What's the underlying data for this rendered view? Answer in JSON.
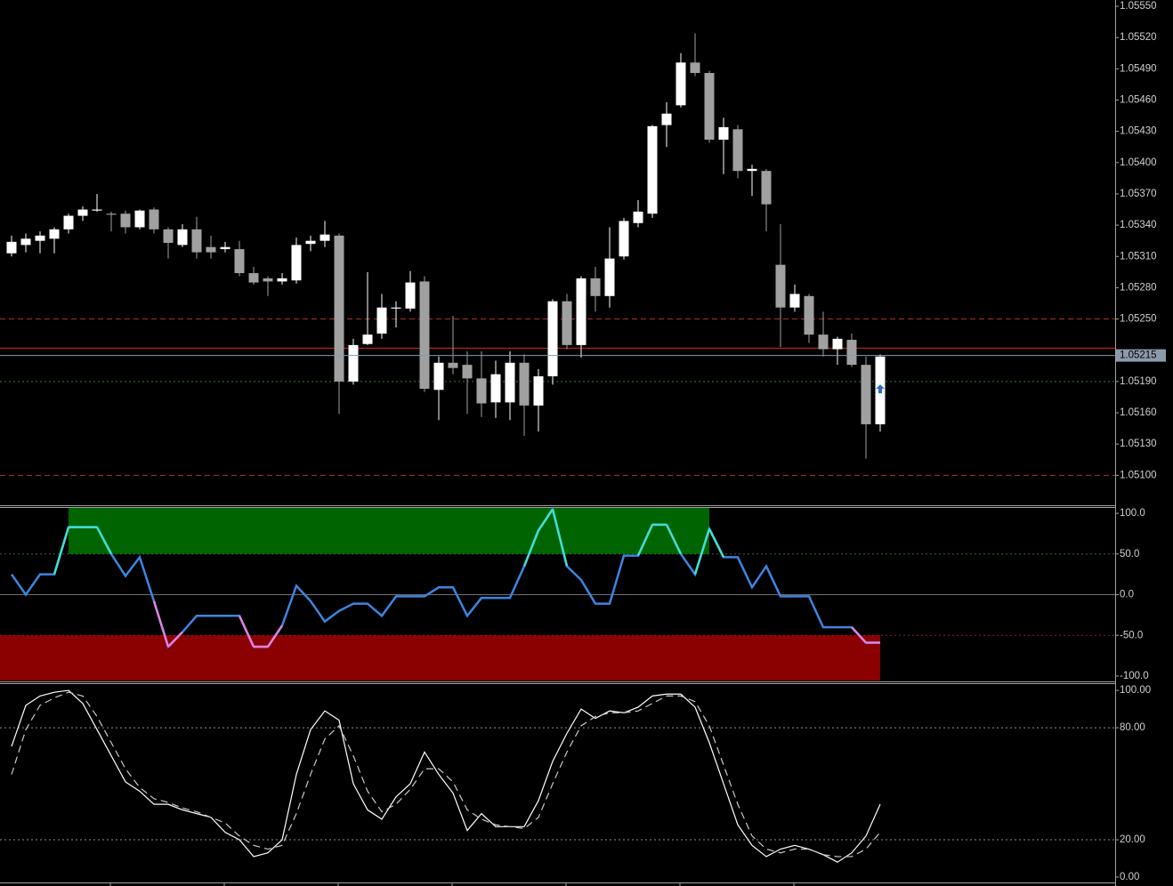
{
  "chart_data": [
    {
      "type": "candlestick",
      "open": [
        1.05313,
        1.05321,
        1.05325,
        1.05327,
        1.05336,
        1.05349,
        1.05354,
        1.05351,
        1.05351,
        1.05338,
        1.05355,
        1.05336,
        1.05321,
        1.05336,
        1.05319,
        1.05317,
        1.05317,
        1.05294,
        1.05289,
        1.05286,
        1.05287,
        1.05322,
        1.05325,
        1.0533,
        1.0519,
        1.05226,
        1.05236,
        1.0526,
        1.0526,
        1.05286,
        1.05182,
        1.05208,
        1.05206,
        1.05193,
        1.0517,
        1.0517,
        1.05208,
        1.05167,
        1.05195,
        1.05267,
        1.05225,
        1.05289,
        1.05272,
        1.0531,
        1.05342,
        1.05351,
        1.05436,
        1.05455,
        1.05496,
        1.05486,
        1.05422,
        1.05432,
        1.05392,
        1.05392,
        1.05302,
        1.05261,
        1.05272,
        1.05235,
        1.05221,
        1.0523,
        1.05206,
        1.05149
      ],
      "high": [
        1.0533,
        1.05332,
        1.05334,
        1.05338,
        1.05351,
        1.05358,
        1.0537,
        1.05353,
        1.05354,
        1.05355,
        1.05357,
        1.05338,
        1.05341,
        1.05348,
        1.0533,
        1.05324,
        1.05325,
        1.053,
        1.05291,
        1.05294,
        1.05328,
        1.0533,
        1.05344,
        1.05332,
        1.05231,
        1.05295,
        1.05274,
        1.05267,
        1.05296,
        1.05291,
        1.05214,
        1.05253,
        1.05219,
        1.05219,
        1.0521,
        1.05219,
        1.05216,
        1.05202,
        1.05269,
        1.05274,
        1.05291,
        1.053,
        1.05338,
        1.05347,
        1.05364,
        1.05436,
        1.05458,
        1.05505,
        1.05524,
        1.05488,
        1.05443,
        1.05436,
        1.05398,
        1.05394,
        1.05341,
        1.05283,
        1.05274,
        1.05257,
        1.05233,
        1.05236,
        1.05214,
        1.05216
      ],
      "low": [
        1.0531,
        1.05314,
        1.05313,
        1.05313,
        1.05332,
        1.05344,
        1.05353,
        1.05334,
        1.05332,
        1.05336,
        1.05332,
        1.05308,
        1.05319,
        1.05308,
        1.05308,
        1.05314,
        1.05291,
        1.05283,
        1.05272,
        1.05283,
        1.05284,
        1.05315,
        1.05319,
        1.05159,
        1.05187,
        1.05225,
        1.05231,
        1.05242,
        1.05257,
        1.0518,
        1.05153,
        1.05197,
        1.05159,
        1.05156,
        1.05155,
        1.05153,
        1.05138,
        1.05142,
        1.05187,
        1.05221,
        1.05213,
        1.05257,
        1.05261,
        1.05307,
        1.05338,
        1.05347,
        1.05415,
        1.05453,
        1.05483,
        1.05419,
        1.05389,
        1.05385,
        1.05368,
        1.05334,
        1.05223,
        1.05257,
        1.05227,
        1.05214,
        1.05206,
        1.05204,
        1.05116,
        1.05142
      ],
      "close": [
        1.05324,
        1.05327,
        1.0533,
        1.05336,
        1.05349,
        1.05355,
        1.05355,
        1.0535,
        1.05338,
        1.05354,
        1.05336,
        1.05323,
        1.05336,
        1.05314,
        1.05314,
        1.05319,
        1.05294,
        1.05285,
        1.05286,
        1.05289,
        1.05321,
        1.05325,
        1.05331,
        1.0519,
        1.05225,
        1.05235,
        1.05261,
        1.05261,
        1.05285,
        1.05183,
        1.05208,
        1.05203,
        1.05193,
        1.05169,
        1.05197,
        1.05208,
        1.05167,
        1.05195,
        1.05267,
        1.05225,
        1.05289,
        1.05272,
        1.05308,
        1.05344,
        1.05353,
        1.05435,
        1.05447,
        1.05496,
        1.05486,
        1.05422,
        1.05434,
        1.05392,
        1.05394,
        1.0536,
        1.05261,
        1.05274,
        1.05235,
        1.05221,
        1.05231,
        1.05206,
        1.05149,
        1.05214
      ],
      "up_color": "#ffffff",
      "down_color": "#a0a0a0",
      "ylim": [
        1.05073,
        1.05556
      ],
      "yticks": [
        {
          "value": 1.0555,
          "label": "1.05550"
        },
        {
          "value": 1.0552,
          "label": "1.05520"
        },
        {
          "value": 1.0549,
          "label": "1.05490"
        },
        {
          "value": 1.0546,
          "label": "1.05460"
        },
        {
          "value": 1.0543,
          "label": "1.05430"
        },
        {
          "value": 1.054,
          "label": "1.05400"
        },
        {
          "value": 1.0537,
          "label": "1.05370"
        },
        {
          "value": 1.0534,
          "label": "1.05340"
        },
        {
          "value": 1.0531,
          "label": "1.05310"
        },
        {
          "value": 1.0528,
          "label": "1.05280"
        },
        {
          "value": 1.0525,
          "label": "1.05250"
        },
        {
          "value": 1.0519,
          "label": "1.05190"
        },
        {
          "value": 1.0516,
          "label": "1.05160"
        },
        {
          "value": 1.0513,
          "label": "1.05130"
        },
        {
          "value": 1.051,
          "label": "1.05100"
        }
      ],
      "levels": [
        {
          "value": 1.0525,
          "color": "#b03030",
          "style": "dashed"
        },
        {
          "value": 1.0519,
          "color": "#3a7a3a",
          "style": "dotted"
        },
        {
          "value": 1.051,
          "color": "#b03030",
          "style": "dashed"
        },
        {
          "value": 1.05222,
          "color": "#e02020",
          "style": "solid"
        }
      ],
      "last_price": 1.05215,
      "last_price_color": "#8c9aac",
      "signal_arrow": {
        "index": 61,
        "value": 1.05183,
        "color": "#2a6fc0"
      }
    },
    {
      "type": "line",
      "series": [
        {
          "color": "#3d85e0",
          "values": [
            25,
            0,
            25,
            25,
            83,
            83,
            83,
            50,
            23,
            46,
            -8,
            -64,
            -46,
            -26,
            -26,
            -26,
            -26,
            -64,
            -64,
            -38,
            11,
            -8,
            -33,
            -20,
            -11,
            -11,
            -26,
            -2,
            -2,
            -2,
            9,
            9,
            -26,
            -4,
            -4,
            -4,
            35,
            79,
            105,
            35,
            18,
            -11,
            -11,
            48,
            48,
            86,
            86,
            50,
            25,
            81,
            46,
            46,
            9,
            35,
            -2,
            -2,
            -2,
            -40,
            -40,
            -40,
            -59,
            -59
          ]
        }
      ],
      "high_color": "#40e0d0",
      "low_color": "#e080e0",
      "zones": [
        {
          "start": 4,
          "end": 49,
          "above": 50,
          "color": "#006400"
        },
        {
          "start": 0,
          "end": 61,
          "below": -50,
          "color": "#8b0000"
        }
      ],
      "ylim": [
        -105.5,
        106.6
      ],
      "yticks": [
        {
          "value": 100,
          "label": "100.0"
        },
        {
          "value": 50,
          "label": "50.0"
        },
        {
          "value": 0,
          "label": "0.0"
        },
        {
          "value": -50,
          "label": "-50.0"
        },
        {
          "value": -100,
          "label": "-100.0"
        }
      ],
      "levels": [
        {
          "value": 50,
          "color": "#2e6b2e",
          "style": "dotted"
        },
        {
          "value": 0,
          "color": "#707070",
          "style": "solid"
        },
        {
          "value": -50,
          "color": "#8b2020",
          "style": "dotted"
        }
      ]
    },
    {
      "type": "line",
      "series": [
        {
          "color": "#ffffff",
          "dash": false,
          "values": [
            70,
            92,
            97,
            99,
            100,
            93,
            79,
            65,
            51,
            46,
            39,
            39,
            36,
            34,
            32,
            24,
            20,
            11,
            13,
            20,
            55,
            79,
            89,
            84,
            50,
            36,
            31,
            43,
            50,
            67,
            55,
            45,
            25,
            34,
            27,
            27,
            27,
            41,
            62,
            77,
            90,
            85,
            89,
            88,
            91,
            97,
            98,
            98,
            91,
            72,
            50,
            28,
            17,
            11,
            15,
            17,
            15,
            12,
            8,
            13,
            22,
            39
          ]
        },
        {
          "color": "#c8c8c8",
          "dash": true,
          "values": [
            55,
            79,
            92,
            96,
            99,
            97,
            86,
            72,
            58,
            48,
            42,
            40,
            37,
            35,
            32,
            29,
            22,
            17,
            15,
            17,
            34,
            55,
            74,
            81,
            65,
            46,
            35,
            39,
            47,
            58,
            58,
            51,
            36,
            31,
            28,
            27,
            26,
            32,
            50,
            67,
            81,
            86,
            88,
            88,
            89,
            93,
            97,
            97,
            94,
            81,
            60,
            39,
            22,
            15,
            13,
            15,
            15,
            12,
            11,
            11,
            15,
            24
          ]
        }
      ],
      "ylim": [
        -1.9,
        102.9
      ],
      "yticks": [
        {
          "value": 100,
          "label": "100.00"
        },
        {
          "value": 80,
          "label": "80.00"
        },
        {
          "value": 20,
          "label": "20.00"
        },
        {
          "value": 0,
          "label": "0.00"
        }
      ],
      "levels": [
        {
          "value": 80,
          "color": "#909090",
          "style": "dotted"
        },
        {
          "value": 20,
          "color": "#909090",
          "style": "dotted"
        }
      ]
    }
  ]
}
